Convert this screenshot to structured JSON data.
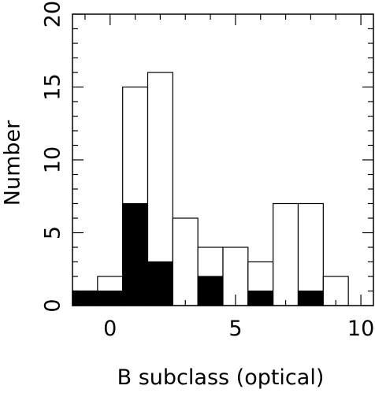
{
  "chart_data": {
    "type": "bar",
    "subtype": "stacked-histogram",
    "xlabel": "B subclass (optical)",
    "ylabel": "Number",
    "xlim": [
      -1.5,
      10.5
    ],
    "ylim": [
      0,
      20
    ],
    "x_ticks": [
      0,
      5,
      10
    ],
    "y_ticks": [
      0,
      5,
      10,
      15,
      20
    ],
    "bin_width": 1,
    "bins": [
      -1,
      0,
      1,
      2,
      3,
      4,
      5,
      6,
      7,
      8,
      9
    ],
    "series": [
      {
        "style": "open",
        "values": [
          1,
          2,
          15,
          16,
          6,
          4,
          4,
          3,
          7,
          7,
          2
        ]
      },
      {
        "style": "filled",
        "values": [
          1,
          1,
          7,
          3,
          0,
          2,
          0,
          1,
          0,
          1,
          0
        ]
      }
    ],
    "grid": false,
    "colors": {
      "filled": "#000000",
      "open": "#ffffff",
      "line": "#000000"
    }
  }
}
